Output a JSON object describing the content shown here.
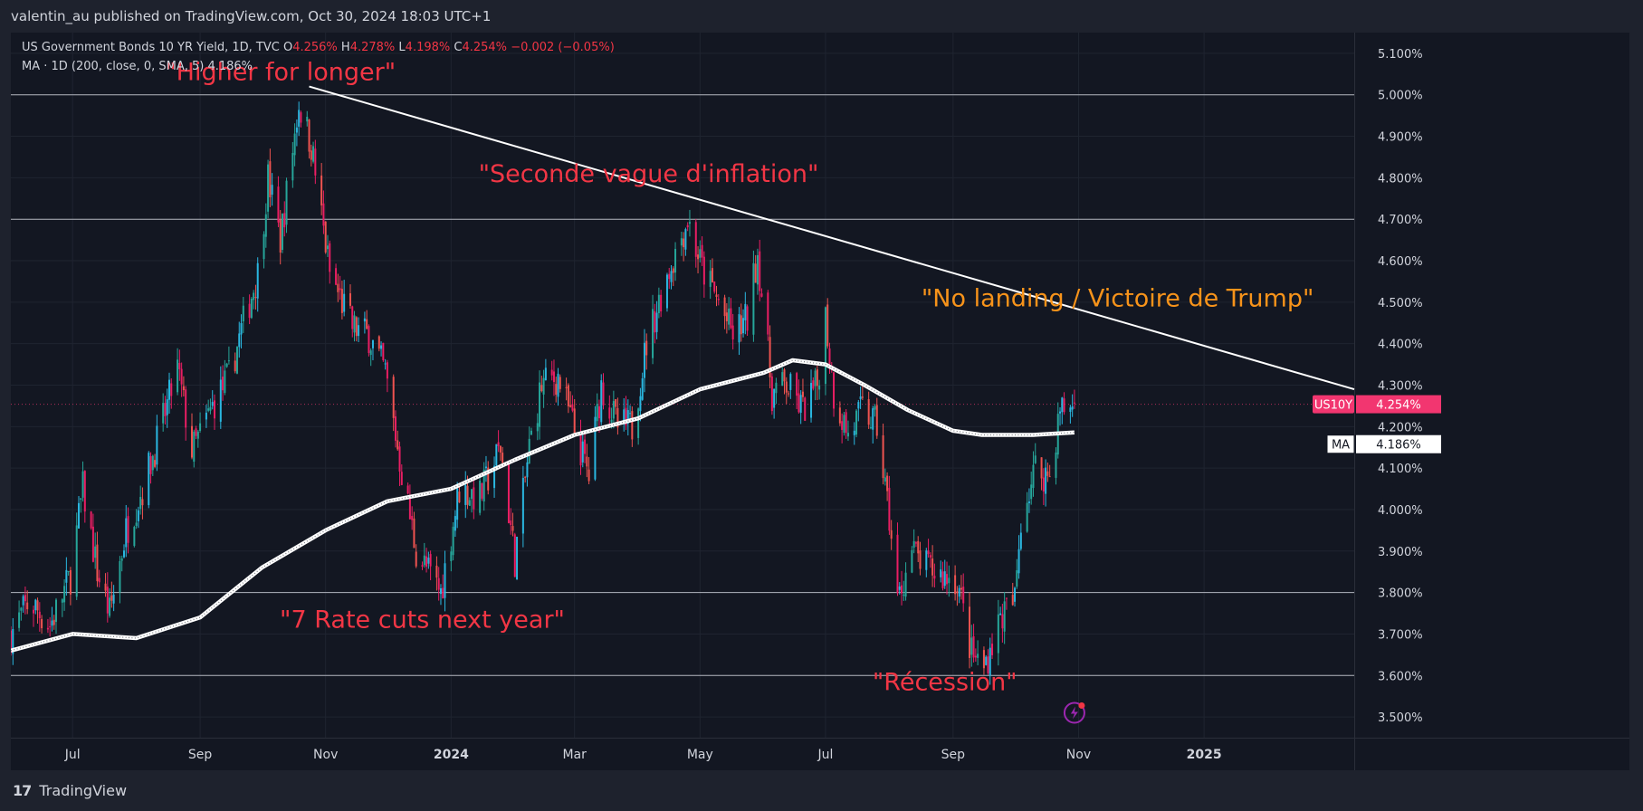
{
  "header": {
    "publisher": "valentin_au published on TradingView.com, Oct 30, 2024 18:03 UTC+1"
  },
  "legend": {
    "symbol": "US Government Bonds 10 YR Yield, 1D, TVC",
    "o_label": "O",
    "o_value": "4.256%",
    "h_label": "H",
    "h_value": "4.278%",
    "l_label": "L",
    "l_value": "4.198%",
    "c_label": "C",
    "c_value": "4.254%",
    "change": "−0.002 (−0.05%)",
    "ma_desc": "MA · 1D (200, close, 0, SMA, 5)",
    "ma_value": "4.186%"
  },
  "footer": {
    "logo": "17",
    "brand": "TradingView"
  },
  "colors": {
    "up": "#26a69a",
    "down": "#ef5350",
    "up_alt": "#2ab7e0",
    "background": "#131722",
    "annotation_red": "#f23645",
    "annotation_orange": "#f7931a",
    "price_tag": "#f23670"
  },
  "chart_data": {
    "type": "candlestick",
    "symbol": "US10Y",
    "timeframe": "1D",
    "x_range": [
      "2023-06-01",
      "2025-03-15"
    ],
    "y_range": [
      3.45,
      5.15
    ],
    "y_ticks": [
      "5.100%",
      "5.000%",
      "4.900%",
      "4.800%",
      "4.700%",
      "4.600%",
      "4.500%",
      "4.400%",
      "4.300%",
      "4.200%",
      "4.100%",
      "4.000%",
      "3.900%",
      "3.800%",
      "3.700%",
      "3.600%",
      "3.500%"
    ],
    "x_ticks": [
      {
        "label": "Jul",
        "date": "2023-07-01",
        "bold": false
      },
      {
        "label": "Sep",
        "date": "2023-09-01",
        "bold": false
      },
      {
        "label": "Nov",
        "date": "2023-11-01",
        "bold": false
      },
      {
        "label": "2024",
        "date": "2024-01-01",
        "bold": true
      },
      {
        "label": "Mar",
        "date": "2024-03-01",
        "bold": false
      },
      {
        "label": "May",
        "date": "2024-05-01",
        "bold": false
      },
      {
        "label": "Jul",
        "date": "2024-07-01",
        "bold": false
      },
      {
        "label": "Sep",
        "date": "2024-09-01",
        "bold": false
      },
      {
        "label": "Nov",
        "date": "2024-11-01",
        "bold": false
      },
      {
        "label": "2025",
        "date": "2025-01-01",
        "bold": true
      }
    ],
    "close_path": [
      [
        "2023-06-01",
        3.7
      ],
      [
        "2023-06-10",
        3.78
      ],
      [
        "2023-06-20",
        3.72
      ],
      [
        "2023-06-30",
        3.84
      ],
      [
        "2023-07-06",
        4.05
      ],
      [
        "2023-07-13",
        3.85
      ],
      [
        "2023-07-19",
        3.75
      ],
      [
        "2023-07-27",
        3.95
      ],
      [
        "2023-08-04",
        4.05
      ],
      [
        "2023-08-12",
        4.18
      ],
      [
        "2023-08-21",
        4.34
      ],
      [
        "2023-08-28",
        4.14
      ],
      [
        "2023-09-01",
        4.18
      ],
      [
        "2023-09-08",
        4.26
      ],
      [
        "2023-09-15",
        4.32
      ],
      [
        "2023-09-22",
        4.45
      ],
      [
        "2023-09-29",
        4.57
      ],
      [
        "2023-10-04",
        4.8
      ],
      [
        "2023-10-10",
        4.65
      ],
      [
        "2023-10-19",
        4.98
      ],
      [
        "2023-10-25",
        4.88
      ],
      [
        "2023-11-03",
        4.57
      ],
      [
        "2023-11-14",
        4.44
      ],
      [
        "2023-11-22",
        4.42
      ],
      [
        "2023-11-30",
        4.33
      ],
      [
        "2023-12-07",
        4.12
      ],
      [
        "2023-12-15",
        3.9
      ],
      [
        "2023-12-27",
        3.8
      ],
      [
        "2024-01-05",
        4.05
      ],
      [
        "2024-01-15",
        4.03
      ],
      [
        "2024-01-25",
        4.15
      ],
      [
        "2024-02-01",
        3.88
      ],
      [
        "2024-02-08",
        4.15
      ],
      [
        "2024-02-14",
        4.3
      ],
      [
        "2024-02-22",
        4.32
      ],
      [
        "2024-03-01",
        4.19
      ],
      [
        "2024-03-08",
        4.08
      ],
      [
        "2024-03-14",
        4.3
      ],
      [
        "2024-03-22",
        4.2
      ],
      [
        "2024-03-29",
        4.2
      ],
      [
        "2024-04-05",
        4.4
      ],
      [
        "2024-04-12",
        4.52
      ],
      [
        "2024-04-19",
        4.62
      ],
      [
        "2024-04-25",
        4.7
      ],
      [
        "2024-05-02",
        4.58
      ],
      [
        "2024-05-10",
        4.5
      ],
      [
        "2024-05-17",
        4.42
      ],
      [
        "2024-05-24",
        4.46
      ],
      [
        "2024-05-29",
        4.62
      ],
      [
        "2024-06-05",
        4.28
      ],
      [
        "2024-06-12",
        4.3
      ],
      [
        "2024-06-20",
        4.24
      ],
      [
        "2024-06-27",
        4.3
      ],
      [
        "2024-07-01",
        4.47
      ],
      [
        "2024-07-05",
        4.28
      ],
      [
        "2024-07-12",
        4.18
      ],
      [
        "2024-07-19",
        4.24
      ],
      [
        "2024-07-26",
        4.2
      ],
      [
        "2024-08-01",
        3.98
      ],
      [
        "2024-08-05",
        3.78
      ],
      [
        "2024-08-12",
        3.9
      ],
      [
        "2024-08-19",
        3.86
      ],
      [
        "2024-08-27",
        3.84
      ],
      [
        "2024-09-03",
        3.83
      ],
      [
        "2024-09-10",
        3.65
      ],
      [
        "2024-09-16",
        3.62
      ],
      [
        "2024-09-24",
        3.74
      ],
      [
        "2024-10-01",
        3.78
      ],
      [
        "2024-10-04",
        3.98
      ],
      [
        "2024-10-11",
        4.1
      ],
      [
        "2024-10-18",
        4.08
      ],
      [
        "2024-10-23",
        4.24
      ],
      [
        "2024-10-30",
        4.254
      ]
    ],
    "ma200_path": [
      [
        "2023-06-01",
        3.66
      ],
      [
        "2023-07-01",
        3.7
      ],
      [
        "2023-08-01",
        3.69
      ],
      [
        "2023-09-01",
        3.74
      ],
      [
        "2023-10-01",
        3.86
      ],
      [
        "2023-11-01",
        3.95
      ],
      [
        "2023-12-01",
        4.02
      ],
      [
        "2024-01-01",
        4.05
      ],
      [
        "2024-02-01",
        4.12
      ],
      [
        "2024-03-01",
        4.18
      ],
      [
        "2024-04-01",
        4.22
      ],
      [
        "2024-05-01",
        4.29
      ],
      [
        "2024-06-01",
        4.33
      ],
      [
        "2024-06-15",
        4.36
      ],
      [
        "2024-07-01",
        4.35
      ],
      [
        "2024-07-20",
        4.3
      ],
      [
        "2024-08-10",
        4.24
      ],
      [
        "2024-09-01",
        4.19
      ],
      [
        "2024-09-15",
        4.18
      ],
      [
        "2024-10-10",
        4.18
      ],
      [
        "2024-10-30",
        4.186
      ]
    ],
    "trendline": [
      [
        "2023-10-24",
        5.02
      ],
      [
        "2025-03-15",
        4.29
      ]
    ],
    "horizontal_levels": [
      5.0,
      4.7,
      3.8,
      3.6
    ],
    "last_price": {
      "label": "US10Y",
      "value": "4.254%",
      "price": 4.254
    },
    "ma_tag": {
      "label": "MA",
      "value": "4.186%",
      "price": 4.186
    },
    "annotations": [
      {
        "text": "\"Higher for longer\"",
        "date": "2023-10-10",
        "price": 5.035,
        "color": "red"
      },
      {
        "text": "\"Seconde vague d'inflation\"",
        "date": "2024-04-06",
        "price": 4.79,
        "color": "red"
      },
      {
        "text": "\"No landing / Victoire de Trump\"",
        "date": "2024-11-20",
        "price": 4.49,
        "color": "orange"
      },
      {
        "text": "\"7 Rate cuts next year\"",
        "date": "2023-12-18",
        "price": 3.715,
        "color": "red"
      },
      {
        "text": "\"Récession\"",
        "date": "2024-08-28",
        "price": 3.565,
        "color": "red"
      }
    ]
  }
}
